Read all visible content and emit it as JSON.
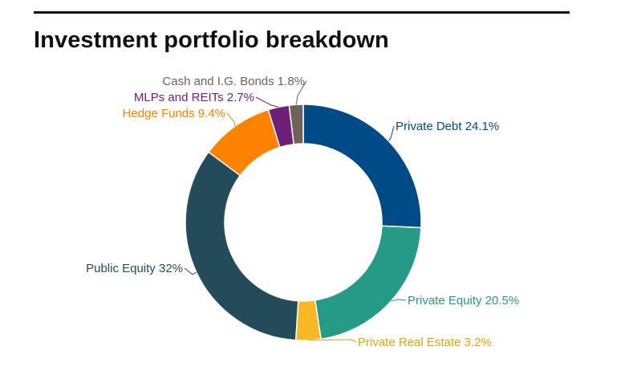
{
  "page": {
    "title": "Investment portfolio breakdown"
  },
  "chart_data": {
    "type": "pie",
    "donut": true,
    "title": "Investment portfolio breakdown",
    "start_angle_deg": 0,
    "direction": "clockwise",
    "slices": [
      {
        "name": "Private Debt",
        "value": 24.1,
        "label": "Private Debt 24.1%",
        "color": "#004a87",
        "label_color": "#004a87"
      },
      {
        "name": "Private Equity",
        "value": 20.5,
        "label": "Private Equity 20.5%",
        "color": "#259b87",
        "label_color": "#259b87"
      },
      {
        "name": "Private Real Estate",
        "value": 3.2,
        "label": "Private Real Estate 3.2%",
        "color": "#f8b724",
        "label_color": "#e6a300"
      },
      {
        "name": "Public Equity",
        "value": 32,
        "label": "Public Equity 32%",
        "color": "#244b59",
        "label_color": "#244b59"
      },
      {
        "name": "Hedge Funds",
        "value": 9.4,
        "label": "Hedge Funds 9.4%",
        "color": "#ff8200",
        "label_color": "#ff8200"
      },
      {
        "name": "MLPs and REITs",
        "value": 2.7,
        "label": "MLPs and REITs 2.7%",
        "color": "#6d2077",
        "label_color": "#6d2077"
      },
      {
        "name": "Cash and I.G. Bonds",
        "value": 1.8,
        "label": "Cash and I.G. Bonds 1.8%",
        "color": "#6e6259",
        "label_color": "#6e6259"
      }
    ]
  }
}
